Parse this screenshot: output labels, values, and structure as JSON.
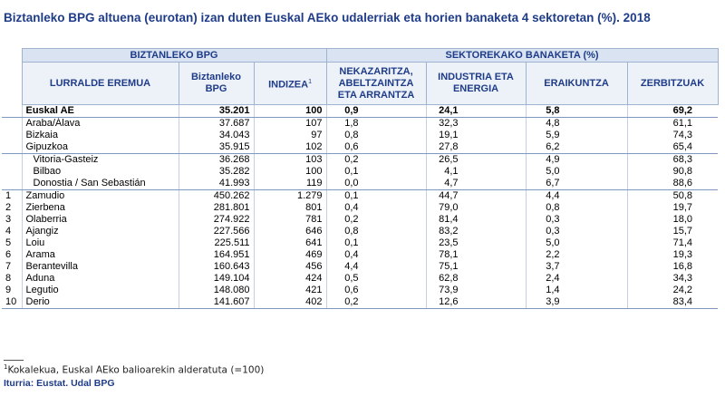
{
  "header": {
    "title": "Biztanleko BPG altuena (eurotan) izan duten Euskal AEko udalerriak eta horien banaketa 4 sektoretan (%). 2018"
  },
  "table": {
    "group_headers": [
      "BIZTANLEKO BPG",
      "SEKTOREKAKO BANAKETA (%)"
    ],
    "columns": [
      "LURRALDE EREMUA",
      "Biztanleko BPG",
      "INDIZEA",
      "NEKAZARITZA, ABELTZAINTZA ETA ARRANTZA",
      "INDUSTRIA ETA ENERGIA",
      "ERAIKUNTZA",
      "ZERBITZUAK"
    ],
    "index_note_mark": "1",
    "total": [
      [
        "Euskal AE",
        "35.201",
        "100",
        "0,9",
        "24,1",
        "5,8",
        "69,2"
      ]
    ],
    "provinces": [
      [
        "Araba/Álava",
        "37.687",
        "107",
        "1,8",
        "32,3",
        "4,8",
        "61,1"
      ],
      [
        "Bizkaia",
        "34.043",
        "97",
        "0,8",
        "19,1",
        "5,9",
        "74,3"
      ],
      [
        "Gipuzkoa",
        "35.915",
        "102",
        "0,6",
        "27,8",
        "6,2",
        "65,4"
      ]
    ],
    "capitals": [
      [
        "Vitoria-Gasteiz",
        "36.268",
        "103",
        "0,2",
        "26,5",
        "4,9",
        "68,3"
      ],
      [
        "Bilbao",
        "35.282",
        "100",
        "0,1",
        "4,1",
        "5,0",
        "90,8"
      ],
      [
        "Donostia / San Sebastián",
        "41.993",
        "119",
        "0,0",
        "4,7",
        "6,7",
        "88,6"
      ]
    ],
    "municipalities": [
      [
        1,
        "Zamudio",
        "450.262",
        "1.279",
        "0,1",
        "44,7",
        "4,4",
        "50,8"
      ],
      [
        2,
        "Zierbena",
        "281.801",
        "801",
        "0,4",
        "79,0",
        "0,8",
        "19,7"
      ],
      [
        3,
        "Olaberria",
        "274.922",
        "781",
        "0,2",
        "81,4",
        "0,3",
        "18,0"
      ],
      [
        4,
        "Ajangiz",
        "227.566",
        "646",
        "0,8",
        "83,2",
        "0,3",
        "15,7"
      ],
      [
        5,
        "Loiu",
        "225.511",
        "641",
        "0,1",
        "23,5",
        "5,0",
        "71,4"
      ],
      [
        6,
        "Arama",
        "164.951",
        "469",
        "0,4",
        "78,1",
        "2,2",
        "19,3"
      ],
      [
        7,
        "Berantevilla",
        "160.643",
        "456",
        "4,4",
        "75,1",
        "3,7",
        "16,8"
      ],
      [
        8,
        "Aduna",
        "149.104",
        "424",
        "0,5",
        "62,8",
        "2,4",
        "34,3"
      ],
      [
        9,
        "Legutio",
        "148.080",
        "421",
        "0,6",
        "73,9",
        "1,4",
        "24,2"
      ],
      [
        10,
        "Derio",
        "141.607",
        "402",
        "0,2",
        "12,6",
        "3,9",
        "83,4"
      ]
    ]
  },
  "footnote": {
    "mark": "1",
    "text": "Kokalekua, Euskal AEko balioarekin alderatuta (=100)"
  },
  "source": "Iturria: Eustat. Udal BPG"
}
